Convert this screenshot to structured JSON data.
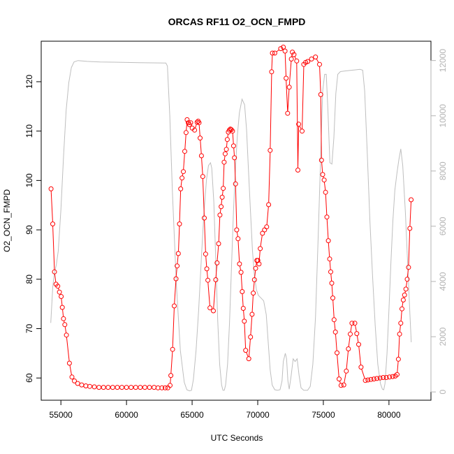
{
  "chart_data": {
    "type": "line",
    "title": "ORCAS RF11 O2_OCN_FMPD",
    "xlabel": "UTC Seconds",
    "ylabel": "O2_OCN_FMPD",
    "xlim": [
      53500,
      83200
    ],
    "ylim": [
      55.5,
      128.2
    ],
    "y2lim": [
      -300,
      12700
    ],
    "x_ticks": [
      55000,
      60000,
      65000,
      70000,
      75000,
      80000
    ],
    "y_ticks": [
      60,
      70,
      80,
      90,
      100,
      110,
      120
    ],
    "y2_ticks": [
      0,
      2000,
      4000,
      6000,
      8000,
      10000,
      12000
    ],
    "grid": false,
    "legend": "none",
    "colors": {
      "primary": "#ff0000",
      "secondary": "#bebebe",
      "axis_right": "#b3b3b3"
    },
    "series": [
      {
        "axis": "left",
        "style": "line-points",
        "points": [
          [
            54250,
            98.3
          ],
          [
            54380,
            91.2
          ],
          [
            54510,
            81.5
          ],
          [
            54630,
            79.0
          ],
          [
            54760,
            78.6
          ],
          [
            54890,
            77.4
          ],
          [
            55020,
            76.5
          ],
          [
            55110,
            74.3
          ],
          [
            55200,
            72.0
          ],
          [
            55300,
            70.8
          ],
          [
            55420,
            68.7
          ],
          [
            55650,
            63.0
          ],
          [
            55840,
            60.2
          ],
          [
            56030,
            59.4
          ],
          [
            56280,
            58.9
          ],
          [
            56580,
            58.6
          ],
          [
            56900,
            58.4
          ],
          [
            57200,
            58.3
          ],
          [
            57550,
            58.2
          ],
          [
            57900,
            58.1
          ],
          [
            58250,
            58.1
          ],
          [
            58600,
            58.1
          ],
          [
            58950,
            58.1
          ],
          [
            59300,
            58.1
          ],
          [
            59650,
            58.1
          ],
          [
            60000,
            58.1
          ],
          [
            60350,
            58.1
          ],
          [
            60700,
            58.1
          ],
          [
            61050,
            58.1
          ],
          [
            61400,
            58.1
          ],
          [
            61750,
            58.1
          ],
          [
            62100,
            58.1
          ],
          [
            62400,
            58.0
          ],
          [
            62700,
            58.0
          ],
          [
            62950,
            58.0
          ],
          [
            63150,
            58.0
          ],
          [
            63320,
            58.5
          ],
          [
            63380,
            60.5
          ],
          [
            63510,
            65.8
          ],
          [
            63640,
            74.6
          ],
          [
            63770,
            80.1
          ],
          [
            63860,
            82.7
          ],
          [
            63950,
            85.2
          ],
          [
            64040,
            91.2
          ],
          [
            64130,
            98.3
          ],
          [
            64230,
            100.5
          ],
          [
            64330,
            101.8
          ],
          [
            64440,
            105.9
          ],
          [
            64540,
            109.7
          ],
          [
            64620,
            112.3
          ],
          [
            64710,
            111.7
          ],
          [
            64800,
            111.3
          ],
          [
            64890,
            111.7
          ],
          [
            65010,
            110.6
          ],
          [
            65190,
            110.2
          ],
          [
            65380,
            111.8
          ],
          [
            65460,
            112.0
          ],
          [
            65530,
            111.7
          ],
          [
            65610,
            108.6
          ],
          [
            65710,
            105.0
          ],
          [
            65810,
            100.8
          ],
          [
            65930,
            92.4
          ],
          [
            66030,
            85.1
          ],
          [
            66120,
            82.1
          ],
          [
            66200,
            79.8
          ],
          [
            66360,
            74.2
          ],
          [
            66620,
            73.6
          ],
          [
            66800,
            79.9
          ],
          [
            66900,
            83.3
          ],
          [
            67020,
            87.2
          ],
          [
            67120,
            93.0
          ],
          [
            67210,
            94.7
          ],
          [
            67290,
            96.6
          ],
          [
            67370,
            98.4
          ],
          [
            67440,
            103.7
          ],
          [
            67520,
            105.4
          ],
          [
            67610,
            106.3
          ],
          [
            67680,
            108.3
          ],
          [
            67760,
            109.8
          ],
          [
            67840,
            110.2
          ],
          [
            67920,
            110.4
          ],
          [
            67990,
            110.3
          ],
          [
            68080,
            110.0
          ],
          [
            68160,
            107.0
          ],
          [
            68230,
            104.6
          ],
          [
            68310,
            99.3
          ],
          [
            68400,
            90.0
          ],
          [
            68500,
            88.2
          ],
          [
            68610,
            83.1
          ],
          [
            68730,
            81.4
          ],
          [
            68820,
            77.5
          ],
          [
            68900,
            74.1
          ],
          [
            68980,
            71.5
          ],
          [
            69080,
            65.6
          ],
          [
            69320,
            63.9
          ],
          [
            69450,
            68.3
          ],
          [
            69570,
            72.9
          ],
          [
            69660,
            77.2
          ],
          [
            69750,
            79.9
          ],
          [
            69840,
            82.2
          ],
          [
            69930,
            83.8
          ],
          [
            70010,
            83.8
          ],
          [
            70100,
            83.1
          ],
          [
            70190,
            86.2
          ],
          [
            70360,
            89.3
          ],
          [
            70520,
            90.0
          ],
          [
            70680,
            90.6
          ],
          [
            70830,
            95.1
          ],
          [
            70950,
            106.1
          ],
          [
            71060,
            122.0
          ],
          [
            71120,
            125.8
          ],
          [
            71300,
            125.8
          ],
          [
            71750,
            126.7
          ],
          [
            71950,
            127.0
          ],
          [
            72080,
            126.2
          ],
          [
            72160,
            120.7
          ],
          [
            72280,
            113.6
          ],
          [
            72400,
            118.9
          ],
          [
            72560,
            124.6
          ],
          [
            72640,
            126.0
          ],
          [
            72760,
            125.5
          ],
          [
            72970,
            124.2
          ],
          [
            73060,
            102.1
          ],
          [
            73120,
            111.4
          ],
          [
            73380,
            110.0
          ],
          [
            73510,
            123.5
          ],
          [
            73650,
            123.9
          ],
          [
            73810,
            124.1
          ],
          [
            74100,
            124.6
          ],
          [
            74400,
            125.0
          ],
          [
            74710,
            123.5
          ],
          [
            74800,
            117.4
          ],
          [
            74860,
            104.1
          ],
          [
            74950,
            101.2
          ],
          [
            75060,
            100.1
          ],
          [
            75170,
            97.6
          ],
          [
            75270,
            92.6
          ],
          [
            75380,
            87.8
          ],
          [
            75480,
            84.1
          ],
          [
            75560,
            81.5
          ],
          [
            75640,
            79.2
          ],
          [
            75720,
            76.2
          ],
          [
            75820,
            71.8
          ],
          [
            75920,
            69.3
          ],
          [
            76040,
            65.1
          ],
          [
            76200,
            59.8
          ],
          [
            76350,
            58.5
          ],
          [
            76560,
            58.6
          ],
          [
            76750,
            61.4
          ],
          [
            76910,
            65.9
          ],
          [
            77050,
            68.9
          ],
          [
            77180,
            71.1
          ],
          [
            77400,
            71.1
          ],
          [
            77550,
            69.0
          ],
          [
            77690,
            66.8
          ],
          [
            77870,
            62.2
          ],
          [
            78200,
            59.5
          ],
          [
            78400,
            59.6
          ],
          [
            78620,
            59.7
          ],
          [
            78850,
            59.8
          ],
          [
            79080,
            59.9
          ],
          [
            79320,
            60.0
          ],
          [
            79560,
            60.1
          ],
          [
            79800,
            60.1
          ],
          [
            80040,
            60.2
          ],
          [
            80280,
            60.3
          ],
          [
            80480,
            60.4
          ],
          [
            80620,
            60.7
          ],
          [
            80720,
            63.8
          ],
          [
            80810,
            68.9
          ],
          [
            80900,
            71.1
          ],
          [
            80990,
            74.0
          ],
          [
            81090,
            75.8
          ],
          [
            81190,
            76.8
          ],
          [
            81290,
            78.0
          ],
          [
            81390,
            80.0
          ],
          [
            81490,
            82.4
          ],
          [
            81590,
            90.3
          ],
          [
            81690,
            96.1
          ]
        ]
      },
      {
        "axis": "right",
        "style": "line",
        "points": [
          [
            54230,
            2500
          ],
          [
            54300,
            3100
          ],
          [
            54380,
            3800
          ],
          [
            54500,
            4300
          ],
          [
            54650,
            4600
          ],
          [
            54800,
            5100
          ],
          [
            55000,
            6600
          ],
          [
            55200,
            8500
          ],
          [
            55400,
            10200
          ],
          [
            55600,
            11200
          ],
          [
            55800,
            11750
          ],
          [
            56000,
            11950
          ],
          [
            56300,
            12000
          ],
          [
            57000,
            11970
          ],
          [
            58000,
            11950
          ],
          [
            59000,
            11940
          ],
          [
            60000,
            11930
          ],
          [
            61000,
            11920
          ],
          [
            62000,
            11915
          ],
          [
            63000,
            11910
          ],
          [
            63120,
            11800
          ],
          [
            63300,
            10000
          ],
          [
            63500,
            7200
          ],
          [
            63800,
            3900
          ],
          [
            64100,
            1500
          ],
          [
            64400,
            350
          ],
          [
            64600,
            80
          ],
          [
            64800,
            40
          ],
          [
            64950,
            60
          ],
          [
            65100,
            450
          ],
          [
            65300,
            1500
          ],
          [
            65500,
            3000
          ],
          [
            65700,
            4800
          ],
          [
            65900,
            6500
          ],
          [
            66100,
            7700
          ],
          [
            66250,
            8200
          ],
          [
            66400,
            8300
          ],
          [
            66500,
            8100
          ],
          [
            66650,
            6900
          ],
          [
            66800,
            4800
          ],
          [
            66950,
            2600
          ],
          [
            67100,
            1000
          ],
          [
            67250,
            250
          ],
          [
            67350,
            60
          ],
          [
            67450,
            60
          ],
          [
            67550,
            250
          ],
          [
            67700,
            1000
          ],
          [
            67850,
            2500
          ],
          [
            68000,
            4500
          ],
          [
            68150,
            6500
          ],
          [
            68300,
            8100
          ],
          [
            68450,
            9300
          ],
          [
            68600,
            10100
          ],
          [
            68800,
            10600
          ],
          [
            69000,
            10400
          ],
          [
            69150,
            9500
          ],
          [
            69300,
            8000
          ],
          [
            69450,
            6500
          ],
          [
            69600,
            5100
          ],
          [
            69750,
            4200
          ],
          [
            69900,
            3700
          ],
          [
            70050,
            3500
          ],
          [
            70250,
            3400
          ],
          [
            70450,
            3300
          ],
          [
            70650,
            2800
          ],
          [
            70800,
            1800
          ],
          [
            70950,
            800
          ],
          [
            71100,
            250
          ],
          [
            71300,
            80
          ],
          [
            71500,
            60
          ],
          [
            71700,
            80
          ],
          [
            71850,
            400
          ],
          [
            71950,
            1100
          ],
          [
            72100,
            1400
          ],
          [
            72200,
            1200
          ],
          [
            72300,
            400
          ],
          [
            72400,
            100
          ],
          [
            72550,
            600
          ],
          [
            72650,
            1000
          ],
          [
            72700,
            1200
          ],
          [
            72850,
            1100
          ],
          [
            73000,
            1200
          ],
          [
            73150,
            600
          ],
          [
            73300,
            150
          ],
          [
            73500,
            60
          ],
          [
            73800,
            60
          ],
          [
            74000,
            200
          ],
          [
            74200,
            1000
          ],
          [
            74400,
            2700
          ],
          [
            74600,
            5500
          ],
          [
            74800,
            8600
          ],
          [
            74950,
            10900
          ],
          [
            75100,
            11500
          ],
          [
            75220,
            11500
          ],
          [
            75350,
            10200
          ],
          [
            75500,
            8300
          ],
          [
            75650,
            8250
          ],
          [
            75800,
            9200
          ],
          [
            75950,
            10800
          ],
          [
            76100,
            11500
          ],
          [
            76300,
            11600
          ],
          [
            76600,
            11620
          ],
          [
            77000,
            11640
          ],
          [
            77400,
            11660
          ],
          [
            77800,
            11680
          ],
          [
            78000,
            11650
          ],
          [
            78150,
            10900
          ],
          [
            78350,
            8600
          ],
          [
            78550,
            6200
          ],
          [
            78750,
            4200
          ],
          [
            78950,
            2400
          ],
          [
            79150,
            1000
          ],
          [
            79350,
            300
          ],
          [
            79500,
            100
          ],
          [
            79600,
            80
          ],
          [
            79700,
            300
          ],
          [
            79850,
            1400
          ],
          [
            80000,
            3000
          ],
          [
            80150,
            4700
          ],
          [
            80300,
            6200
          ],
          [
            80450,
            7300
          ],
          [
            80600,
            7900
          ],
          [
            80750,
            8400
          ],
          [
            80900,
            8800
          ],
          [
            81050,
            8200
          ],
          [
            81250,
            6500
          ],
          [
            81450,
            4400
          ],
          [
            81600,
            2800
          ],
          [
            81700,
            1800
          ]
        ]
      }
    ]
  }
}
